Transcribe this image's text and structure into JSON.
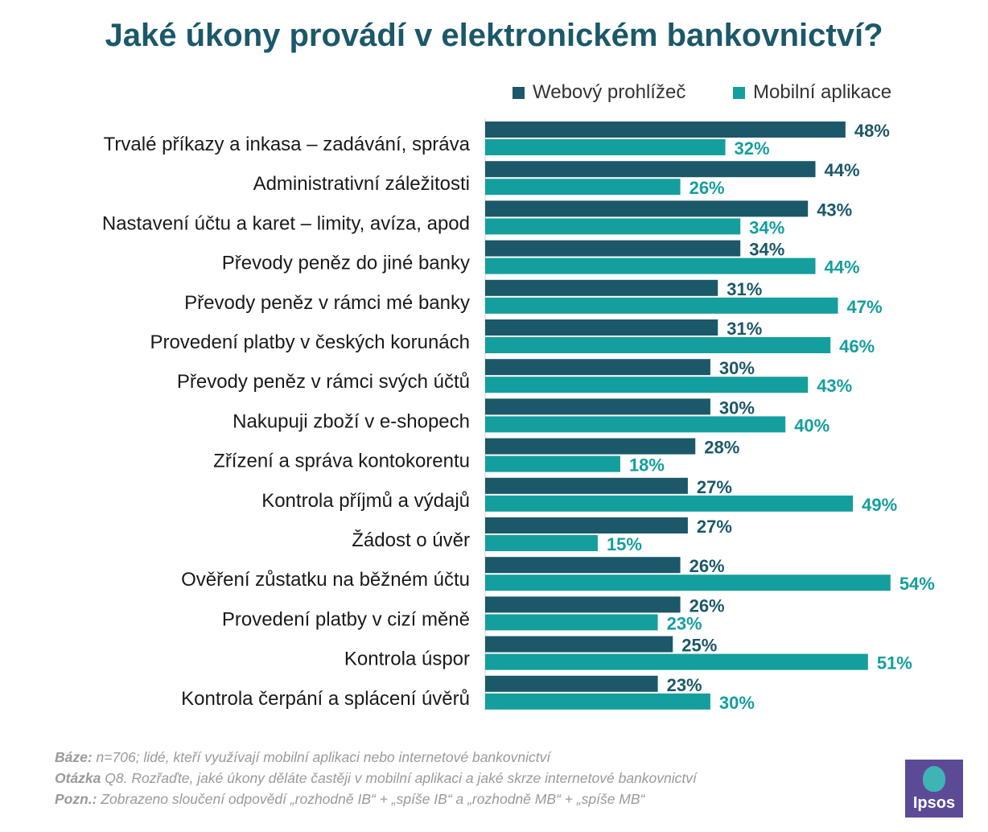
{
  "colors": {
    "web": "#1b5869",
    "mobile": "#159e9e",
    "title": "#1b5869"
  },
  "legend": {
    "web": "Webový prohlížeč",
    "mobile": "Mobilní aplikace"
  },
  "notes": {
    "baze_label": "Báze:",
    "baze_text": " n=706; lidé, kteří využívají mobilní aplikaci nebo internetové bankovnictví",
    "otazka_label": "Otázka",
    "otazka_text": " Q8. Rozřaďte, jaké úkony děláte častěji v mobilní aplikaci a jaké skrze internetové bankovnictví",
    "pozn_label": "Pozn.:",
    "pozn_text": " Zobrazeno sloučení odpovědí „rozhodně IB“ + „spíše IB“ a „rozhodně MB“ + „spíše MB“"
  },
  "logo": {
    "text": "Ipsos"
  },
  "chart_data": {
    "type": "bar",
    "orientation": "horizontal",
    "title": "Jaké úkony provádí v elektronickém bankovnictví?",
    "xlim": [
      0,
      54
    ],
    "value_suffix": "%",
    "categories": [
      "Trvalé příkazy a inkasa – zadávání, správa",
      "Administrativní záležitosti",
      "Nastavení účtu a karet – limity, avíza, apod",
      "Převody peněz do jiné banky",
      "Převody peněz v rámci mé banky",
      "Provedení platby v českých korunách",
      "Převody peněz v rámci svých účtů",
      "Nakupuji zboží v e-shopech",
      "Zřízení a správa kontokorentu",
      "Kontrola příjmů a výdajů",
      "Žádost o úvěr",
      "Ověření zůstatku na běžném účtu",
      "Provedení platby v cizí měně",
      "Kontrola úspor",
      "Kontrola čerpání a splácení úvěrů"
    ],
    "series": [
      {
        "name": "Webový prohlížeč",
        "values": [
          48,
          44,
          43,
          34,
          31,
          31,
          30,
          30,
          28,
          27,
          27,
          26,
          26,
          25,
          23
        ]
      },
      {
        "name": "Mobilní aplikace",
        "values": [
          32,
          26,
          34,
          44,
          47,
          46,
          43,
          40,
          18,
          49,
          15,
          54,
          23,
          51,
          30
        ]
      }
    ],
    "legend_position": "top-right"
  }
}
